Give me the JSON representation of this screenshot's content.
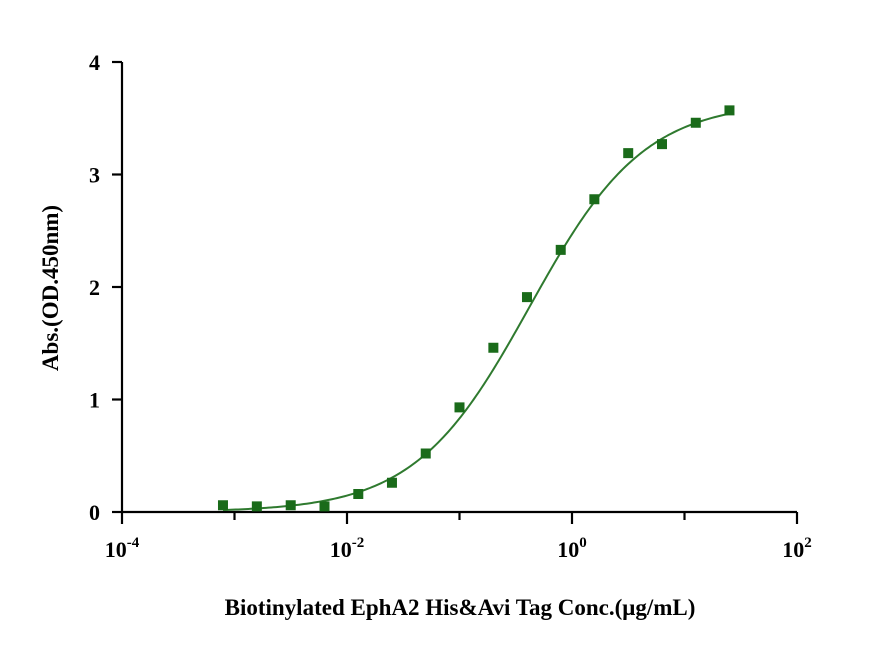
{
  "chart_data": {
    "type": "scatter",
    "title": "",
    "xlabel": "Biotinylated EphA2 His&Avi Tag Conc.(μg/mL)",
    "ylabel": "Abs.(OD.450nm)",
    "x_scale": "log",
    "xlim": [
      0.0001,
      100
    ],
    "ylim": [
      0,
      4
    ],
    "grid": false,
    "x_ticks": [
      {
        "value": 0.0001,
        "base": "10",
        "exp": "-4"
      },
      {
        "value": 0.01,
        "base": "10",
        "exp": "-2"
      },
      {
        "value": 1,
        "base": "10",
        "exp": "0"
      },
      {
        "value": 100,
        "base": "10",
        "exp": "2"
      }
    ],
    "y_ticks": [
      0,
      1,
      2,
      3,
      4
    ],
    "marker_color": "#1a6b1a",
    "curve_color": "#2f7a2f",
    "series": [
      {
        "points": [
          {
            "x": 0.00079,
            "y": 0.06
          },
          {
            "x": 0.00158,
            "y": 0.05
          },
          {
            "x": 0.00316,
            "y": 0.06
          },
          {
            "x": 0.00631,
            "y": 0.05
          },
          {
            "x": 0.0126,
            "y": 0.16
          },
          {
            "x": 0.0251,
            "y": 0.26
          },
          {
            "x": 0.0501,
            "y": 0.52
          },
          {
            "x": 0.1,
            "y": 0.93
          },
          {
            "x": 0.2,
            "y": 1.46
          },
          {
            "x": 0.398,
            "y": 1.91
          },
          {
            "x": 0.794,
            "y": 2.33
          },
          {
            "x": 1.58,
            "y": 2.78
          },
          {
            "x": 3.16,
            "y": 3.19
          },
          {
            "x": 6.31,
            "y": 3.27
          },
          {
            "x": 12.6,
            "y": 3.46
          },
          {
            "x": 25.1,
            "y": 3.57
          }
        ],
        "fit": {
          "bottom": 0.0,
          "top": 3.65,
          "ec50": 0.42,
          "hill": 0.85
        }
      }
    ]
  }
}
